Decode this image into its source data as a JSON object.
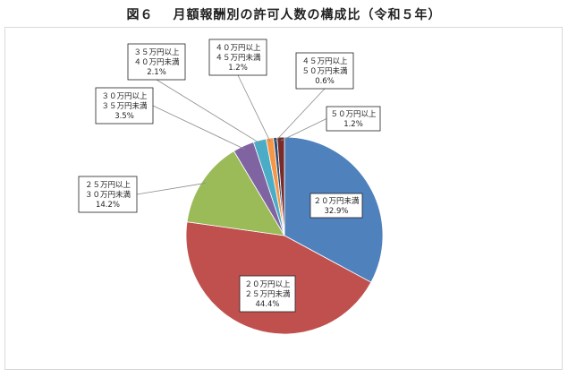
{
  "title": {
    "figure_no": "図６",
    "text": "月額報酬別の許可人数の構成比（令和５年）"
  },
  "chart_data": {
    "type": "pie",
    "title": "月額報酬別の許可人数の構成比（令和５年）",
    "legend": "none",
    "slices": [
      {
        "label_lines": [
          "２０万円未満"
        ],
        "value": 32.9,
        "value_label": "32.9%",
        "color": "#4f81bd"
      },
      {
        "label_lines": [
          "２０万円以上",
          "２５万円未満"
        ],
        "value": 44.4,
        "value_label": "44.4%",
        "color": "#c0504d"
      },
      {
        "label_lines": [
          "２５万円以上",
          "３０万円未満"
        ],
        "value": 14.2,
        "value_label": "14.2%",
        "color": "#9bbb59"
      },
      {
        "label_lines": [
          "３０万円以上",
          "３５万円未満"
        ],
        "value": 3.5,
        "value_label": "3.5%",
        "color": "#8064a2"
      },
      {
        "label_lines": [
          "３５万円以上",
          "４０万円未満"
        ],
        "value": 2.1,
        "value_label": "2.1%",
        "color": "#4bacc6"
      },
      {
        "label_lines": [
          "４０万円以上",
          "４５万円未満"
        ],
        "value": 1.2,
        "value_label": "1.2%",
        "color": "#f79646"
      },
      {
        "label_lines": [
          "４５万円以上",
          "５０万円未満"
        ],
        "value": 0.6,
        "value_label": "0.6%",
        "color": "#2c4d75"
      },
      {
        "label_lines": [
          "５０万円以上"
        ],
        "value": 1.2,
        "value_label": "1.2%",
        "color": "#772c2a"
      }
    ]
  }
}
